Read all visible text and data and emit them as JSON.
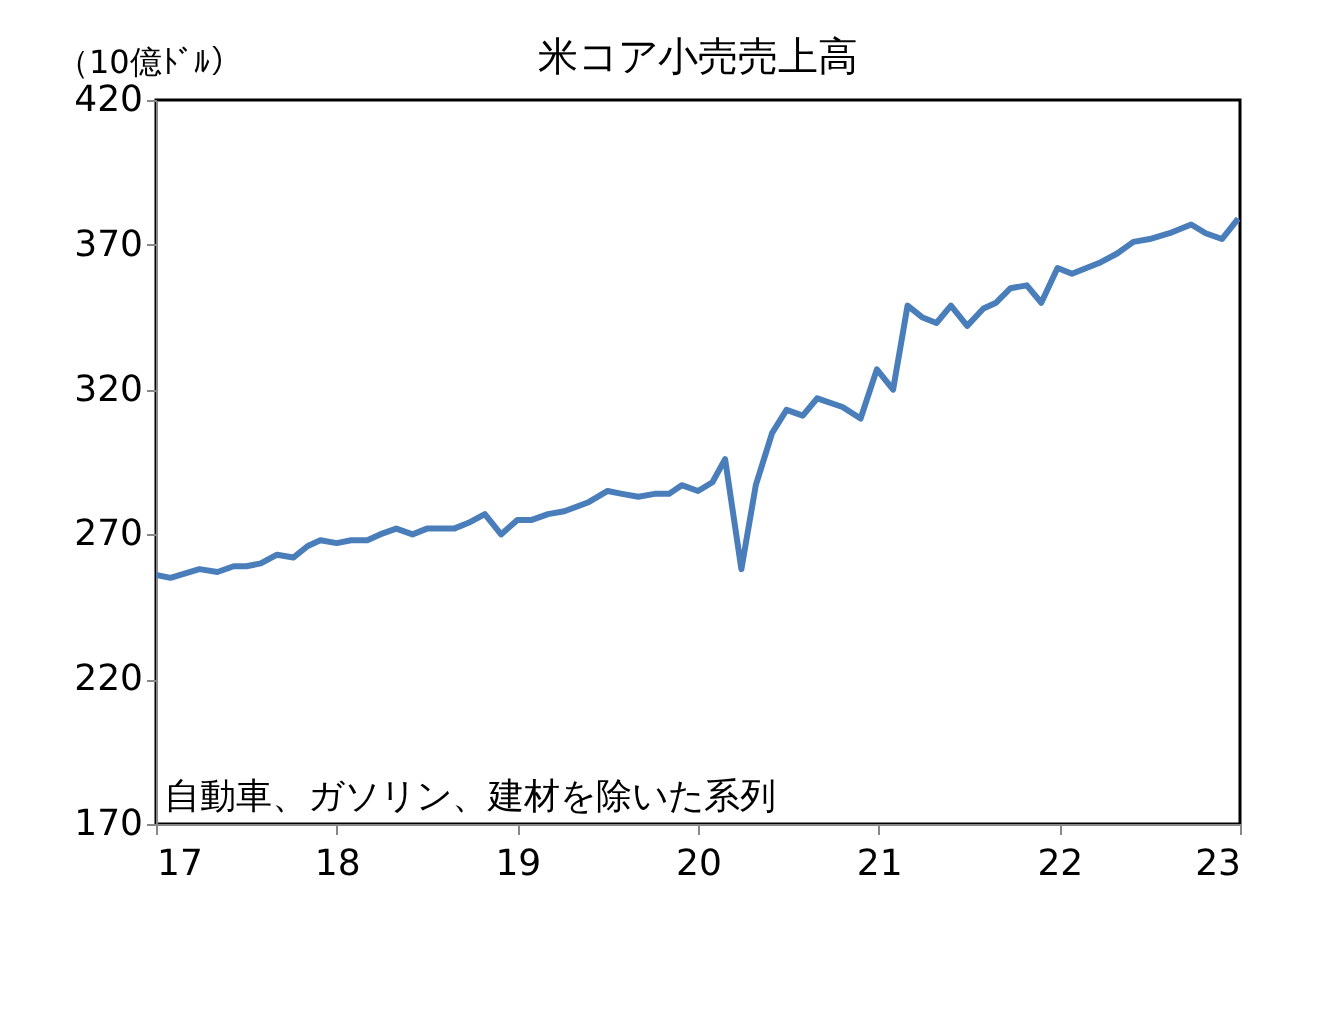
{
  "chart_data": {
    "type": "line",
    "title": "米コア小売売上高",
    "ylabel": "（10億ﾄﾞﾙ）",
    "x": [
      17.0,
      17.08,
      17.24,
      17.34,
      17.43,
      17.5,
      17.58,
      17.67,
      17.76,
      17.84,
      17.91,
      18.0,
      18.08,
      18.17,
      18.24,
      18.33,
      18.42,
      18.5,
      18.65,
      18.73,
      18.82,
      18.91,
      19.0,
      19.08,
      19.17,
      19.26,
      19.39,
      19.5,
      19.58,
      19.67,
      19.76,
      19.84,
      19.91,
      20.0,
      20.08,
      20.15,
      20.24,
      20.32,
      20.41,
      20.49,
      20.58,
      20.66,
      20.8,
      20.9,
      20.99,
      21.08,
      21.16,
      21.24,
      21.32,
      21.4,
      21.49,
      21.58,
      21.65,
      21.73,
      21.82,
      21.9,
      21.99,
      22.07,
      22.15,
      22.23,
      22.32,
      22.41,
      22.5,
      22.61,
      22.73,
      22.81,
      22.9,
      22.99
    ],
    "series": [
      {
        "color": "#4a7ebb",
        "values": [
          256,
          255,
          258,
          257,
          259,
          259,
          260,
          263,
          262,
          266,
          268,
          267,
          268,
          268,
          270,
          272,
          270,
          272,
          272,
          274,
          277,
          270,
          275,
          275,
          277,
          278,
          281,
          285,
          284,
          283,
          284,
          284,
          287,
          285,
          288,
          296,
          258,
          287,
          305,
          313,
          311,
          317,
          314,
          310,
          327,
          320,
          349,
          345,
          343,
          349,
          342,
          348,
          350,
          355,
          356,
          350,
          362,
          360,
          362,
          364,
          367,
          371,
          372,
          374,
          377,
          374,
          372,
          379
        ]
      }
    ],
    "xlim": [
      17,
      23
    ],
    "xticks": [
      17,
      18,
      19,
      20,
      21,
      22,
      23
    ],
    "ylim": [
      170,
      420
    ],
    "yticks": [
      170,
      220,
      270,
      320,
      370,
      420
    ],
    "annotations": [
      "自動車、ガソリン、建材を除いた系列"
    ],
    "grid": false,
    "legend": false
  }
}
